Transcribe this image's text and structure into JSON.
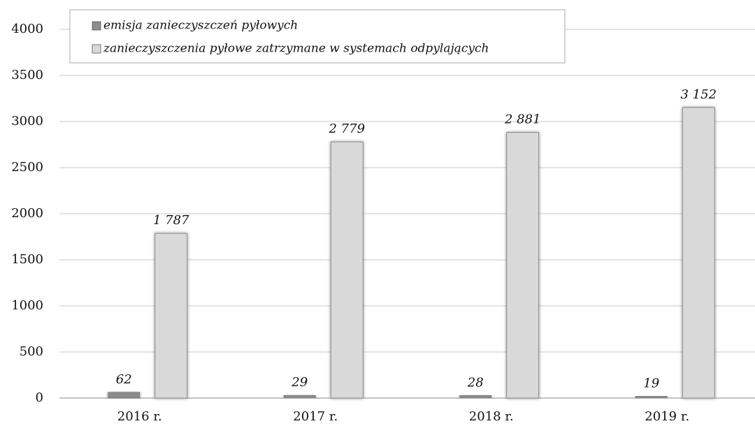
{
  "chart_data": {
    "type": "bar",
    "categories": [
      "2016 r.",
      "2017 r.",
      "2018 r.",
      "2019 r."
    ],
    "series": [
      {
        "name": "emisja zanieczyszczeń pyłowych",
        "color": "#8c8c8c",
        "values": [
          62,
          29,
          28,
          19
        ]
      },
      {
        "name": "zanieczyszczenia pyłowe zatrzymane w systemach odpylających",
        "color": "#d9d9d9",
        "values": [
          1787,
          2779,
          2881,
          3152
        ],
        "value_labels": [
          "1 787",
          "2 779",
          "2 881",
          "3 152"
        ]
      }
    ],
    "ylim": [
      0,
      4000
    ],
    "yticks": [
      0,
      500,
      1000,
      1500,
      2000,
      2500,
      3000,
      3500,
      4000
    ],
    "grid": true,
    "legend": "top"
  }
}
